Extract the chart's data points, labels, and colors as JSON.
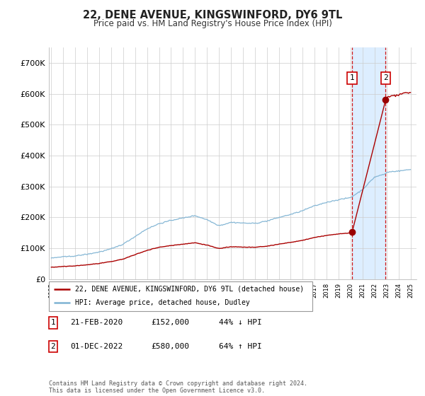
{
  "title": "22, DENE AVENUE, KINGSWINFORD, DY6 9TL",
  "subtitle": "Price paid vs. HM Land Registry's House Price Index (HPI)",
  "ylim": [
    0,
    750000
  ],
  "yticks": [
    0,
    100000,
    200000,
    300000,
    400000,
    500000,
    600000,
    700000
  ],
  "ytick_labels": [
    "£0",
    "£100K",
    "£200K",
    "£300K",
    "£400K",
    "£500K",
    "£600K",
    "£700K"
  ],
  "background_color": "#ffffff",
  "grid_color": "#cccccc",
  "hpi_line_color": "#7fb3d3",
  "price_line_color": "#aa0000",
  "sale1_date": 2020.12,
  "sale1_price": 152000,
  "sale2_date": 2022.92,
  "sale2_price": 580000,
  "sale1_date_str": "21-FEB-2020",
  "sale2_date_str": "01-DEC-2022",
  "sale1_price_str": "£152,000",
  "sale2_price_str": "£580,000",
  "sale1_hpi_pct": "44% ↓ HPI",
  "sale2_hpi_pct": "64% ↑ HPI",
  "legend_line1": "22, DENE AVENUE, KINGSWINFORD, DY6 9TL (detached house)",
  "legend_line2": "HPI: Average price, detached house, Dudley",
  "footer": "Contains HM Land Registry data © Crown copyright and database right 2024.\nThis data is licensed under the Open Government Licence v3.0.",
  "highlight_color": "#ddeeff",
  "marker_color": "#990000",
  "dashed_line_color": "#cc0000",
  "xstart": 1995,
  "xend": 2025
}
